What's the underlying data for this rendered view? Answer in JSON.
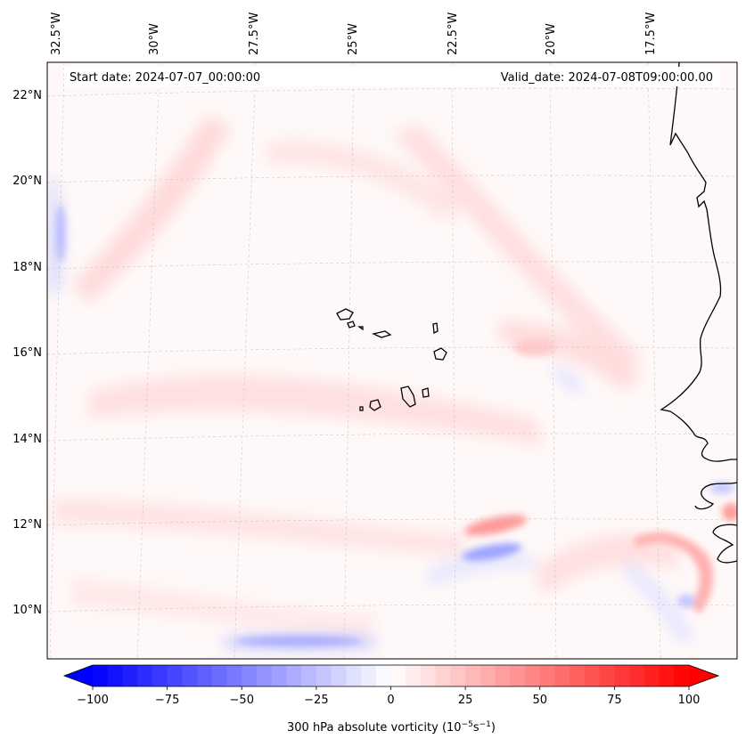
{
  "map": {
    "start_date": "Start date: 2024-07-07_00:00:00",
    "valid_date": "Valid_date: 2024-07-08T09:00:00.00",
    "lon_labels": [
      {
        "text": "32.5°W",
        "lon": -32.5
      },
      {
        "text": "30°W",
        "lon": -30
      },
      {
        "text": "27.5°W",
        "lon": -27.5
      },
      {
        "text": "25°W",
        "lon": -25
      },
      {
        "text": "22.5°W",
        "lon": -22.5
      },
      {
        "text": "20°W",
        "lon": -20
      },
      {
        "text": "17.5°W",
        "lon": -17.5
      }
    ],
    "lat_labels": [
      {
        "text": "22°N",
        "lat": 22
      },
      {
        "text": "20°N",
        "lat": 20
      },
      {
        "text": "18°N",
        "lat": 18
      },
      {
        "text": "16°N",
        "lat": 16
      },
      {
        "text": "14°N",
        "lat": 14
      },
      {
        "text": "12°N",
        "lat": 12
      },
      {
        "text": "10°N",
        "lat": 10
      }
    ],
    "colors": {
      "negative": "#0000ff",
      "neutral": "#ffffff",
      "positive": "#ff0000",
      "coastline": "#000000"
    }
  },
  "colorbar": {
    "min": -100,
    "max": 100,
    "ticks": [
      -100,
      -75,
      -50,
      -25,
      0,
      25,
      50,
      75,
      100
    ],
    "tick_labels": [
      "−100",
      "−75",
      "−50",
      "−25",
      "0",
      "25",
      "50",
      "75",
      "100"
    ],
    "label_prefix": "300 hPa absolute vorticity (10",
    "label_exp1": "−5",
    "label_mid": "s",
    "label_exp2": "−1",
    "label_suffix": ")"
  }
}
